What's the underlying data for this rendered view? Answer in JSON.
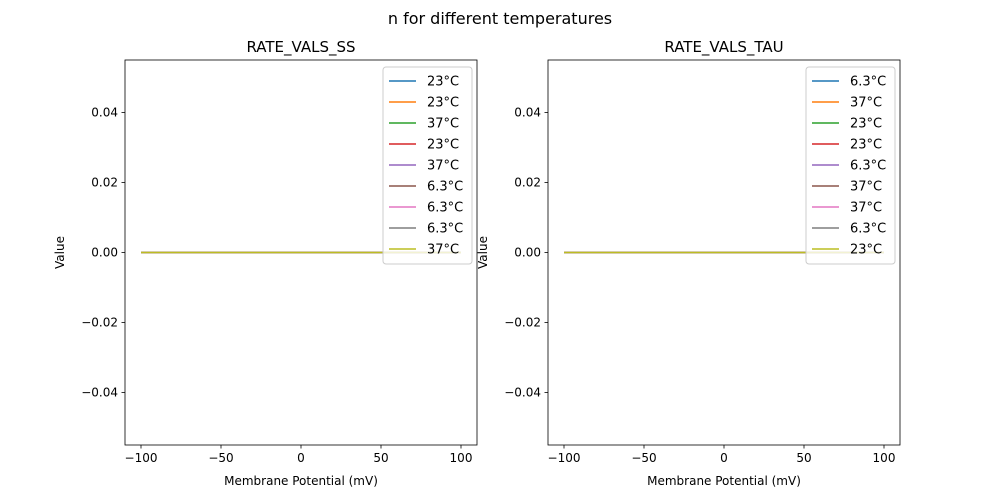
{
  "suptitle": "n for different temperatures",
  "chart_data": [
    {
      "type": "line",
      "title": "RATE_VALS_SS",
      "xlabel": "Membrane Potential (mV)",
      "ylabel": "Value",
      "xlim": [
        -110,
        110
      ],
      "ylim": [
        -0.055,
        0.055
      ],
      "xticks": [
        -100,
        -50,
        0,
        50,
        100
      ],
      "xtick_labels": [
        "−100",
        "−50",
        "0",
        "50",
        "100"
      ],
      "yticks": [
        -0.04,
        -0.02,
        0.0,
        0.02,
        0.04
      ],
      "ytick_labels": [
        "−0.04",
        "−0.02",
        "0.00",
        "0.02",
        "0.04"
      ],
      "legend_position": "top-right",
      "x": [
        -100,
        100
      ],
      "series": [
        {
          "name": "23°C",
          "color": "#1f77b4",
          "values": [
            0,
            0
          ]
        },
        {
          "name": "23°C",
          "color": "#ff7f0e",
          "values": [
            0,
            0
          ]
        },
        {
          "name": "37°C",
          "color": "#2ca02c",
          "values": [
            0,
            0
          ]
        },
        {
          "name": "23°C",
          "color": "#d62728",
          "values": [
            0,
            0
          ]
        },
        {
          "name": "37°C",
          "color": "#9467bd",
          "values": [
            0,
            0
          ]
        },
        {
          "name": "6.3°C",
          "color": "#8c564b",
          "values": [
            0,
            0
          ]
        },
        {
          "name": "6.3°C",
          "color": "#e377c2",
          "values": [
            0,
            0
          ]
        },
        {
          "name": "6.3°C",
          "color": "#7f7f7f",
          "values": [
            0,
            0
          ]
        },
        {
          "name": "37°C",
          "color": "#bcbd22",
          "values": [
            0,
            0
          ]
        }
      ]
    },
    {
      "type": "line",
      "title": "RATE_VALS_TAU",
      "xlabel": "Membrane Potential (mV)",
      "ylabel": "Value",
      "xlim": [
        -110,
        110
      ],
      "ylim": [
        -0.055,
        0.055
      ],
      "xticks": [
        -100,
        -50,
        0,
        50,
        100
      ],
      "xtick_labels": [
        "−100",
        "−50",
        "0",
        "50",
        "100"
      ],
      "yticks": [
        -0.04,
        -0.02,
        0.0,
        0.02,
        0.04
      ],
      "ytick_labels": [
        "−0.04",
        "−0.02",
        "0.00",
        "0.02",
        "0.04"
      ],
      "legend_position": "top-right",
      "x": [
        -100,
        100
      ],
      "series": [
        {
          "name": "6.3°C",
          "color": "#1f77b4",
          "values": [
            0,
            0
          ]
        },
        {
          "name": "37°C",
          "color": "#ff7f0e",
          "values": [
            0,
            0
          ]
        },
        {
          "name": "23°C",
          "color": "#2ca02c",
          "values": [
            0,
            0
          ]
        },
        {
          "name": "23°C",
          "color": "#d62728",
          "values": [
            0,
            0
          ]
        },
        {
          "name": "6.3°C",
          "color": "#9467bd",
          "values": [
            0,
            0
          ]
        },
        {
          "name": "37°C",
          "color": "#8c564b",
          "values": [
            0,
            0
          ]
        },
        {
          "name": "37°C",
          "color": "#e377c2",
          "values": [
            0,
            0
          ]
        },
        {
          "name": "6.3°C",
          "color": "#7f7f7f",
          "values": [
            0,
            0
          ]
        },
        {
          "name": "23°C",
          "color": "#bcbd22",
          "values": [
            0,
            0
          ]
        }
      ]
    }
  ]
}
